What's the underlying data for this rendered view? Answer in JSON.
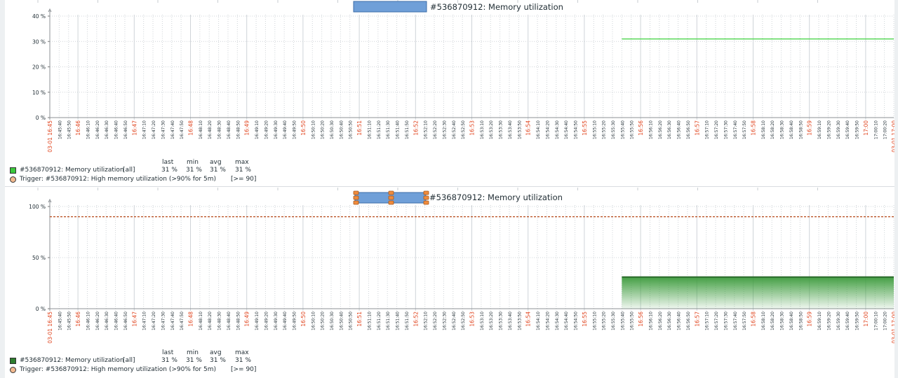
{
  "graphs": [
    {
      "title": "#536870912: Memory utilization",
      "yticks": [
        "0 %",
        "10 %",
        "20 %",
        "30 %",
        "40 %"
      ],
      "legend": {
        "headers": {
          "last": "last",
          "min": "min",
          "avg": "avg",
          "max": "max"
        },
        "item_name": "#536870912: Memory utilization",
        "item_func": "[all]",
        "item_last": "31 %",
        "item_min": "31 %",
        "item_avg": "31 %",
        "item_max": "31 %",
        "trigger_text": "Trigger: #536870912: High memory utilization (>90% for 5m)",
        "trigger_cond": "[>= 90]"
      }
    },
    {
      "title": "#536870912: Memory utilization",
      "yticks": [
        "0 %",
        "50 %",
        "100 %"
      ],
      "legend": {
        "headers": {
          "last": "last",
          "min": "min",
          "avg": "avg",
          "max": "max"
        },
        "item_name": "#536870912: Memory utilization",
        "item_func": "[all]",
        "item_last": "31 %",
        "item_min": "31 %",
        "item_avg": "31 %",
        "item_max": "31 %",
        "trigger_text": "Trigger: #536870912: High memory utilization (>90% for 5m)",
        "trigger_cond": "[>= 90]"
      }
    }
  ],
  "xaxis": {
    "start_label": "03-01 16:45",
    "end_label": "03-01 17:00",
    "ticks": [
      "16:45:40",
      "16:45:50",
      "16:46",
      "16:46:10",
      "16:46:20",
      "16:46:30",
      "16:46:40",
      "16:46:50",
      "16:47",
      "16:47:10",
      "16:47:20",
      "16:47:30",
      "16:47:40",
      "16:47:50",
      "16:48",
      "16:48:10",
      "16:48:20",
      "16:48:30",
      "16:48:40",
      "16:48:50",
      "16:49",
      "16:49:10",
      "16:49:20",
      "16:49:30",
      "16:49:40",
      "16:49:50",
      "16:50",
      "16:50:10",
      "16:50:20",
      "16:50:30",
      "16:50:40",
      "16:50:50",
      "16:51",
      "16:51:10",
      "16:51:20",
      "16:51:30",
      "16:51:40",
      "16:51:50",
      "16:52",
      "16:52:10",
      "16:52:20",
      "16:52:30",
      "16:52:40",
      "16:52:50",
      "16:53",
      "16:53:10",
      "16:53:20",
      "16:53:30",
      "16:53:40",
      "16:53:50",
      "16:54",
      "16:54:10",
      "16:54:20",
      "16:54:30",
      "16:54:40",
      "16:54:50",
      "16:55",
      "16:55:10",
      "16:55:20",
      "16:55:30",
      "16:55:40",
      "16:55:50",
      "16:56",
      "16:56:10",
      "16:56:20",
      "16:56:30",
      "16:56:40",
      "16:56:50",
      "16:57",
      "16:57:10",
      "16:57:20",
      "16:57:30",
      "16:57:40",
      "16:57:50",
      "16:58",
      "16:58:10",
      "16:58:20",
      "16:58:30",
      "16:58:40",
      "16:58:50",
      "16:59",
      "16:59:10",
      "16:59:20",
      "16:59:30",
      "16:59:40",
      "16:59:50",
      "17:00",
      "17:00:10",
      "17:00:20"
    ]
  },
  "colors": {
    "line_green": "#58d858",
    "area_green": "#3a9a3a",
    "area_border": "#2b6b2b",
    "trigger": "#b8491a",
    "minute_label": "#e0431d",
    "tick_label": "#1f2c33",
    "grid": "#cfd4d8",
    "title_bar": "#6f9fd8",
    "handle": "#f08b3c"
  },
  "chart_data": [
    {
      "type": "line",
      "title": "#536870912: Memory utilization",
      "x_start": "03-01 16:45:30",
      "x_end": "03-01 17:00:30",
      "ylim": [
        0,
        40
      ],
      "ylabel": "",
      "series": [
        {
          "name": "#536870912: Memory utilization",
          "x": [
            "16:55:40",
            "17:00:30"
          ],
          "values": [
            31,
            31
          ]
        }
      ],
      "grid": true,
      "legend_position": "bottom-left"
    },
    {
      "type": "area",
      "title": "#536870912: Memory utilization",
      "x_start": "03-01 16:45:30",
      "x_end": "03-01 17:00:30",
      "ylim": [
        0,
        100
      ],
      "ylabel": "",
      "series": [
        {
          "name": "#536870912: Memory utilization",
          "x": [
            "16:55:40",
            "17:00:30"
          ],
          "values": [
            31,
            31
          ]
        }
      ],
      "trigger_level": 90,
      "grid": true,
      "legend_position": "bottom-left"
    }
  ]
}
